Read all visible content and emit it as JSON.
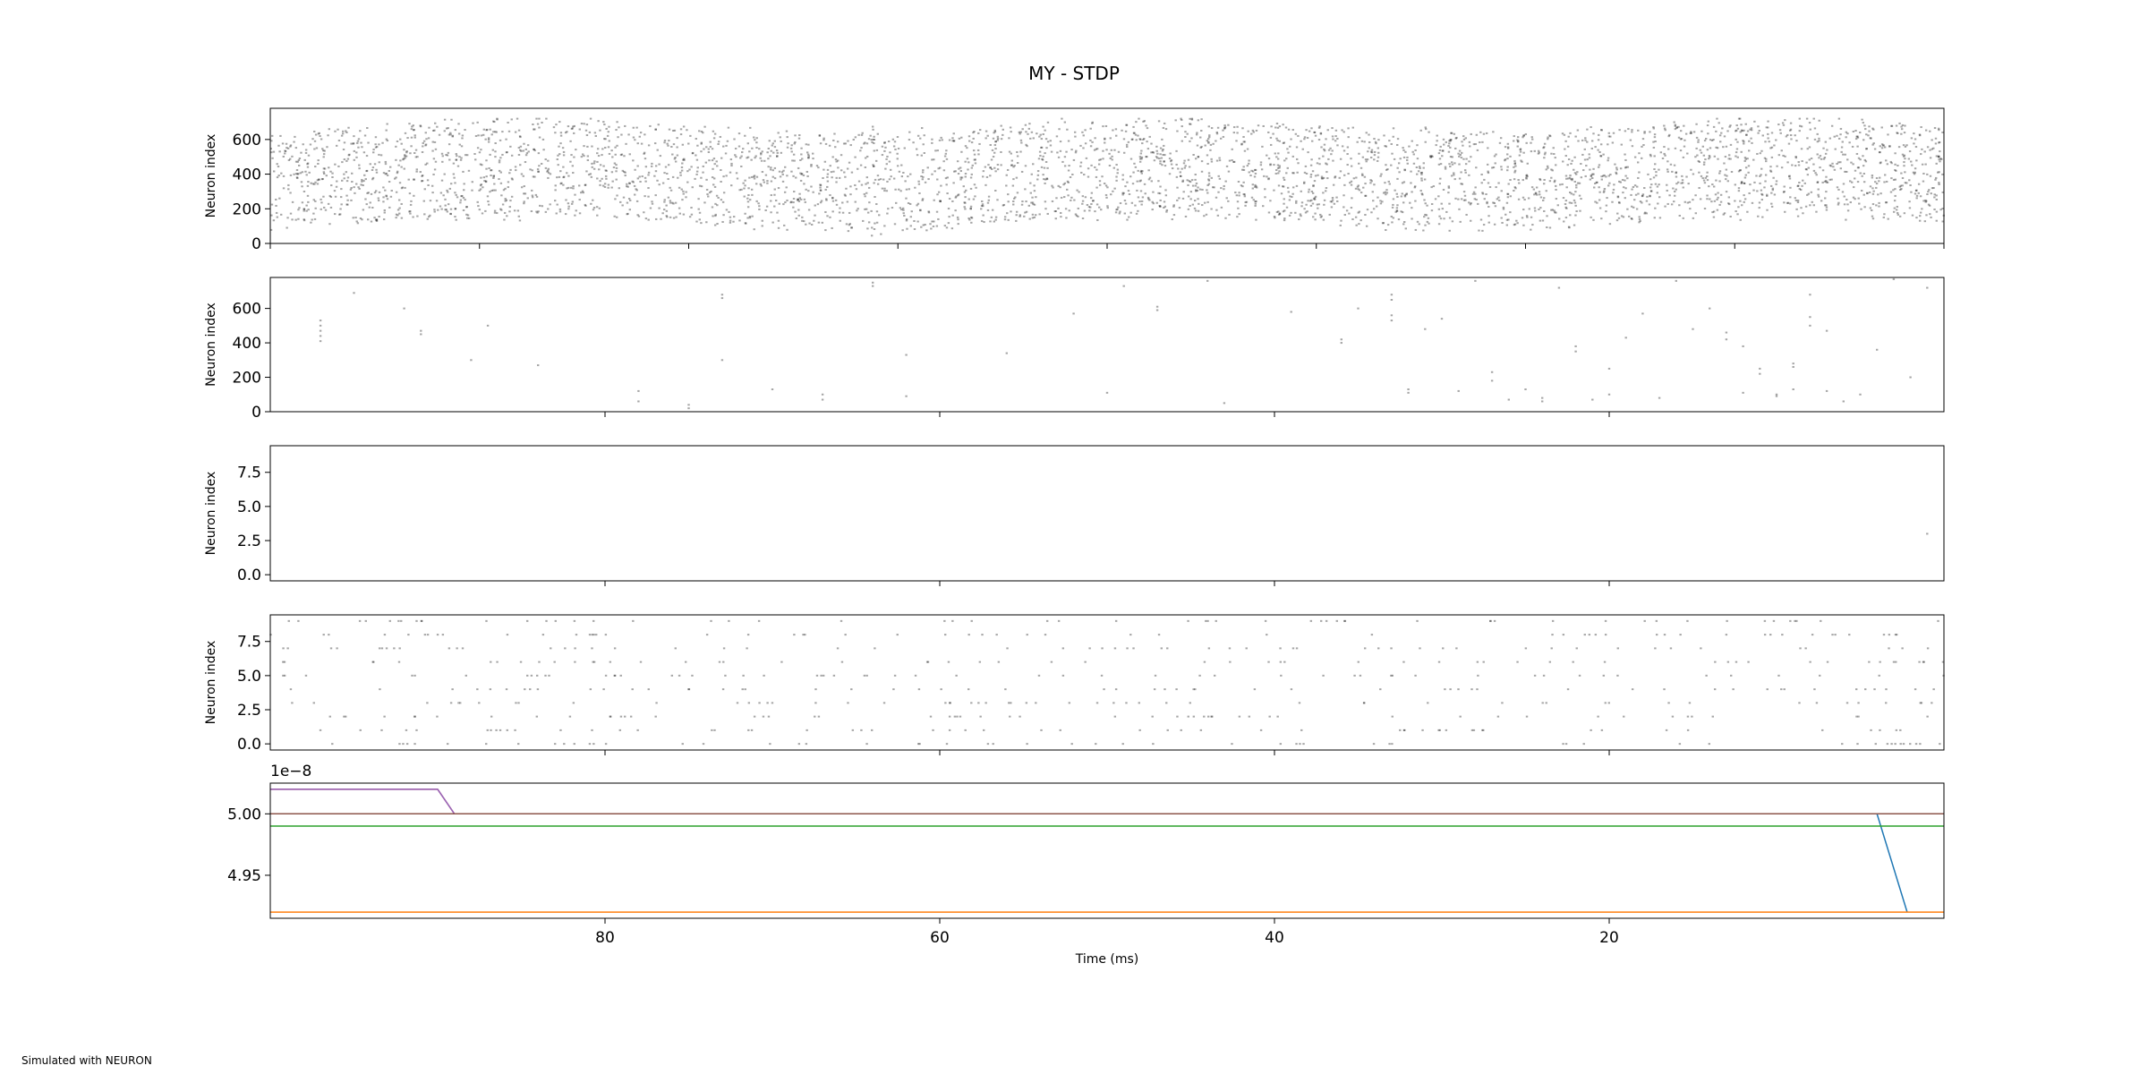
{
  "figure": {
    "title": "MY - STDP",
    "footer": "Simulated with NEURON",
    "xlabel": "Time (ms)"
  },
  "chart_data": [
    {
      "type": "scatter",
      "panel": "raster-1",
      "ylabel": "Neuron index",
      "xlim": [
        100,
        0
      ],
      "ylim": [
        0,
        780
      ],
      "yticks": [
        "0",
        "200",
        "400",
        "600"
      ],
      "xticks": [],
      "marker_color": "#000000",
      "density": "dense",
      "neuron_range": [
        20,
        720
      ]
    },
    {
      "type": "scatter",
      "panel": "raster-2",
      "ylabel": "Neuron index",
      "xlim": [
        100,
        0
      ],
      "ylim": [
        0,
        780
      ],
      "yticks": [
        "0",
        "200",
        "400",
        "600"
      ],
      "xticks": [],
      "marker_color": "#000000",
      "points": [
        [
          97,
          530
        ],
        [
          97,
          500
        ],
        [
          97,
          470
        ],
        [
          97,
          440
        ],
        [
          97,
          410
        ],
        [
          95,
          690
        ],
        [
          92,
          600
        ],
        [
          91,
          470
        ],
        [
          91,
          450
        ],
        [
          88,
          300
        ],
        [
          87,
          500
        ],
        [
          84,
          270
        ],
        [
          78,
          120
        ],
        [
          78,
          60
        ],
        [
          75,
          40
        ],
        [
          75,
          20
        ],
        [
          73,
          300
        ],
        [
          73,
          680
        ],
        [
          73,
          660
        ],
        [
          70,
          130
        ],
        [
          67,
          100
        ],
        [
          67,
          70
        ],
        [
          64,
          750
        ],
        [
          64,
          730
        ],
        [
          62,
          90
        ],
        [
          62,
          330
        ],
        [
          56,
          340
        ],
        [
          52,
          570
        ],
        [
          50,
          110
        ],
        [
          49,
          730
        ],
        [
          47,
          610
        ],
        [
          47,
          590
        ],
        [
          44,
          760
        ],
        [
          43,
          50
        ],
        [
          39,
          580
        ],
        [
          36,
          420
        ],
        [
          36,
          400
        ],
        [
          35,
          600
        ],
        [
          33,
          680
        ],
        [
          33,
          650
        ],
        [
          33,
          560
        ],
        [
          33,
          530
        ],
        [
          32,
          130
        ],
        [
          32,
          110
        ],
        [
          31,
          480
        ],
        [
          30,
          540
        ],
        [
          29,
          120
        ],
        [
          28,
          760
        ],
        [
          27,
          230
        ],
        [
          27,
          180
        ],
        [
          26,
          70
        ],
        [
          25,
          130
        ],
        [
          24,
          60
        ],
        [
          24,
          80
        ],
        [
          23,
          720
        ],
        [
          22,
          380
        ],
        [
          22,
          350
        ],
        [
          21,
          70
        ],
        [
          20,
          100
        ],
        [
          20,
          250
        ],
        [
          19,
          430
        ],
        [
          18,
          570
        ],
        [
          17,
          80
        ],
        [
          16,
          760
        ],
        [
          15,
          480
        ],
        [
          14,
          600
        ],
        [
          13,
          460
        ],
        [
          13,
          420
        ],
        [
          12,
          380
        ],
        [
          12,
          110
        ],
        [
          11,
          250
        ],
        [
          11,
          220
        ],
        [
          10,
          100
        ],
        [
          10,
          90
        ],
        [
          9,
          280
        ],
        [
          9,
          260
        ],
        [
          9,
          130
        ],
        [
          8,
          680
        ],
        [
          8,
          550
        ],
        [
          8,
          500
        ],
        [
          7,
          470
        ],
        [
          7,
          120
        ],
        [
          6,
          60
        ],
        [
          5,
          100
        ],
        [
          4,
          360
        ],
        [
          3,
          770
        ],
        [
          2,
          200
        ],
        [
          1,
          720
        ]
      ]
    },
    {
      "type": "scatter",
      "panel": "raster-3",
      "ylabel": "Neuron index",
      "xlim": [
        100,
        0
      ],
      "ylim": [
        -0.45,
        9.45
      ],
      "yticks": [
        "0.0",
        "2.5",
        "5.0",
        "7.5"
      ],
      "xticks": [],
      "marker_color": "#000000",
      "points": [
        [
          1,
          3
        ]
      ]
    },
    {
      "type": "scatter",
      "panel": "raster-4",
      "ylabel": "Neuron index",
      "xlim": [
        100,
        0
      ],
      "ylim": [
        -0.45,
        9.45
      ],
      "yticks": [
        "0.0",
        "2.5",
        "5.0",
        "7.5"
      ],
      "xticks": [],
      "marker_color": "#000000",
      "neurons": [
        0,
        1,
        2,
        3,
        4,
        5,
        6,
        7,
        8,
        9
      ],
      "density": "sparse"
    },
    {
      "type": "line",
      "panel": "weights",
      "offset_label": "1e−8",
      "xlim": [
        100,
        0
      ],
      "ylim": [
        4.915,
        5.025
      ],
      "yticks": [
        "4.95",
        "5.00"
      ],
      "xticks": [
        "80",
        "60",
        "40",
        "20"
      ],
      "series": [
        {
          "color": "#1f77b4",
          "points": [
            [
              100,
              5.0
            ],
            [
              4,
              5.0
            ],
            [
              2.2,
              4.92
            ]
          ]
        },
        {
          "color": "#ff7f0e",
          "points": [
            [
              100,
              4.92
            ],
            [
              0,
              4.92
            ]
          ]
        },
        {
          "color": "#2ca02c",
          "points": [
            [
              100,
              4.99
            ],
            [
              0,
              4.99
            ]
          ]
        },
        {
          "color": "#d62728",
          "points": [
            [
              100,
              5.02
            ],
            [
              90,
              5.02
            ],
            [
              89,
              5.0
            ],
            [
              0,
              5.0
            ]
          ]
        },
        {
          "color": "#9467bd",
          "points": [
            [
              100,
              5.02
            ],
            [
              90,
              5.02
            ],
            [
              89,
              5.0
            ],
            [
              0,
              5.0
            ]
          ]
        },
        {
          "color": "#8c564b",
          "points": [
            [
              100,
              5.0
            ],
            [
              0,
              5.0
            ]
          ]
        }
      ]
    }
  ]
}
